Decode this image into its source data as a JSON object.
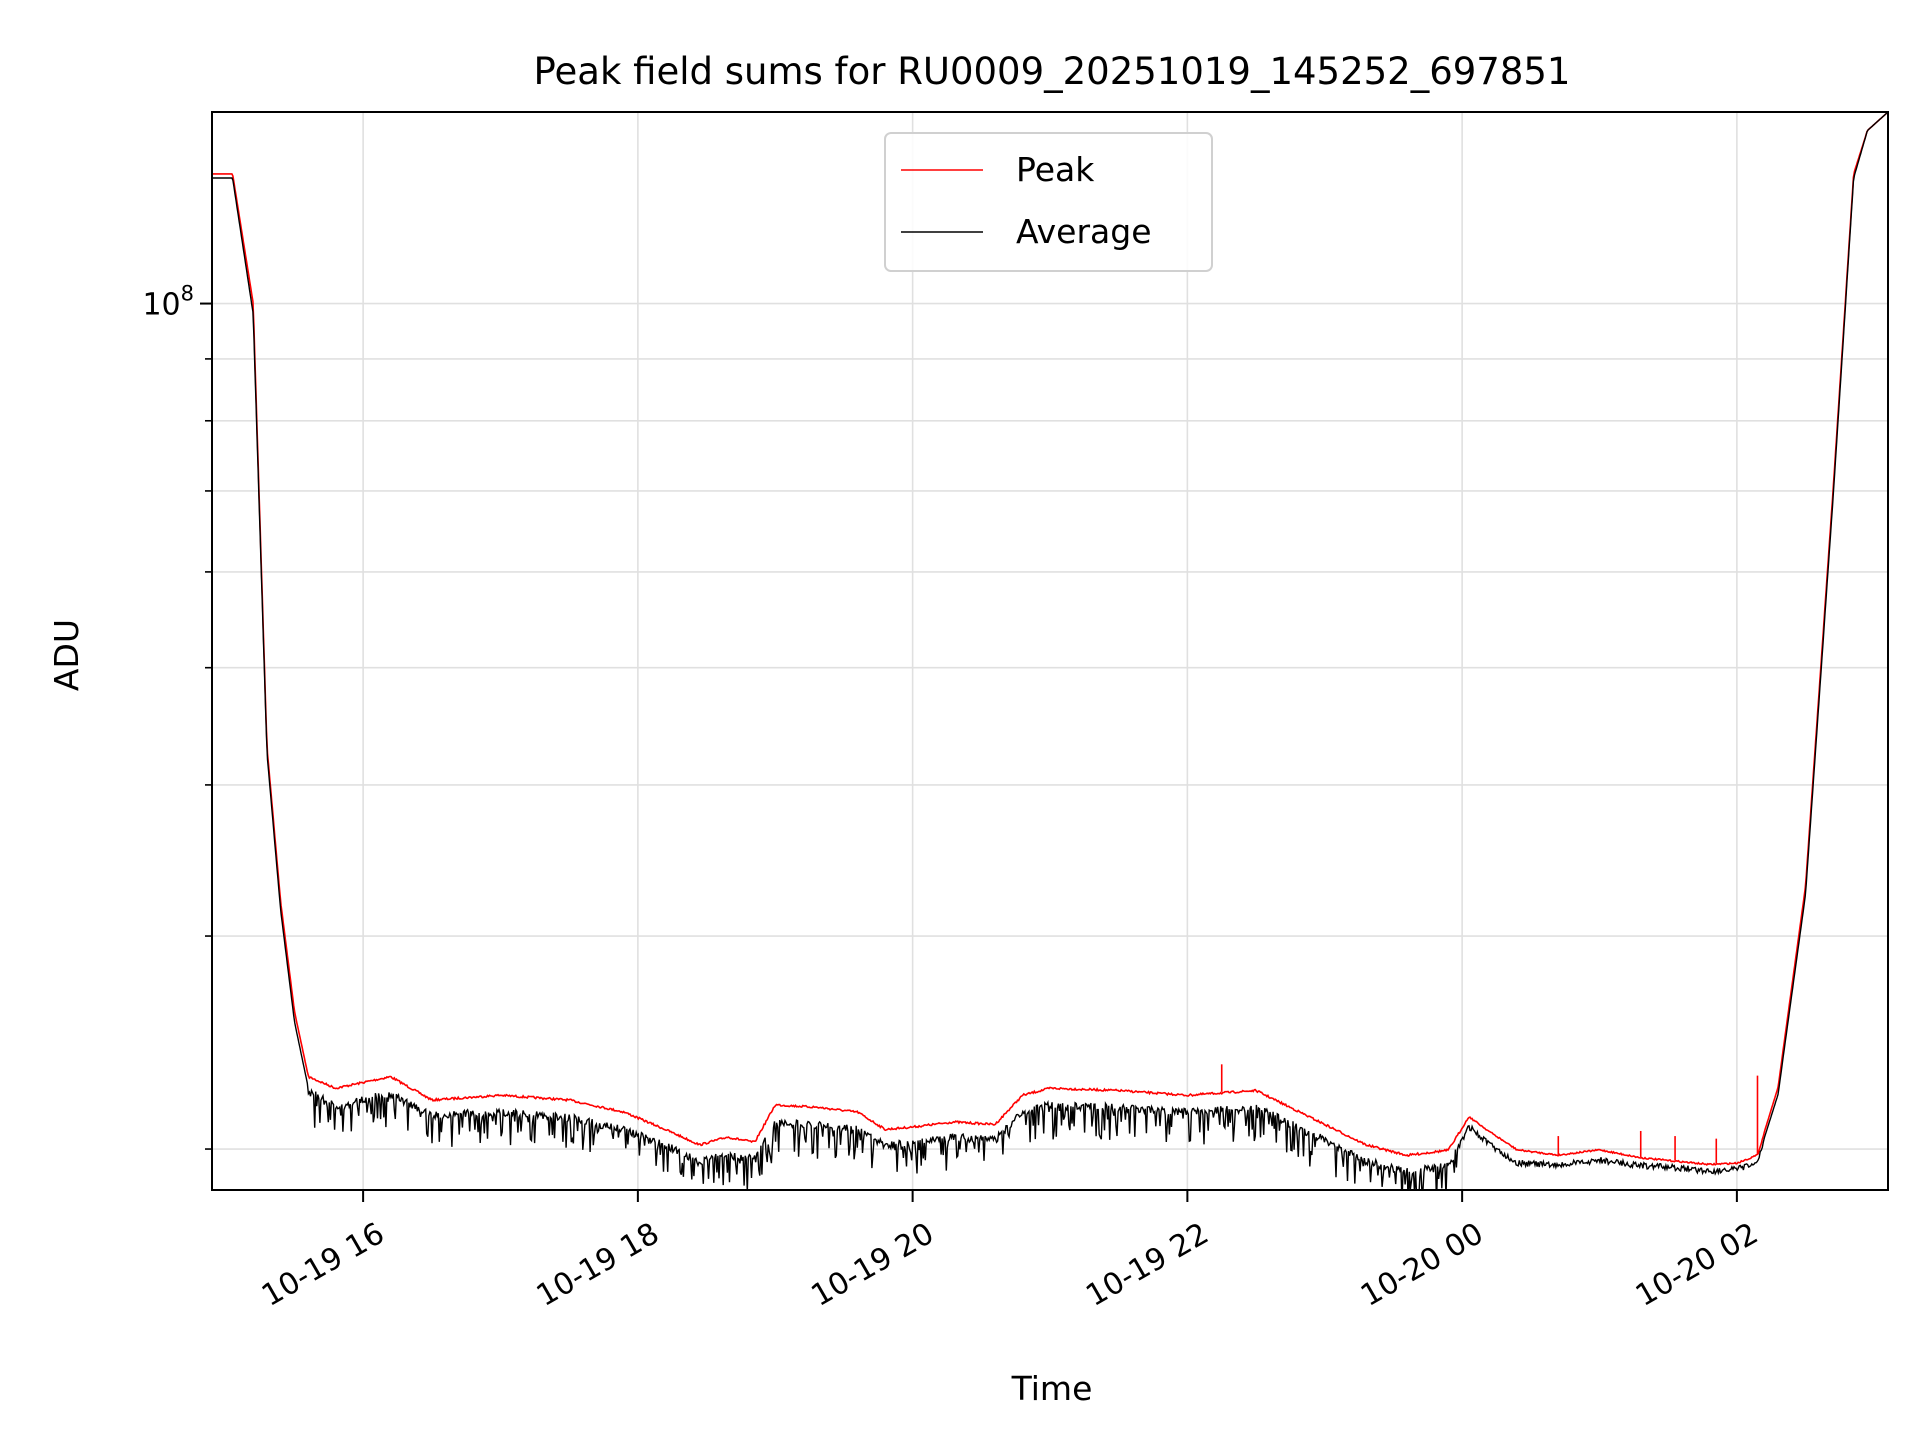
{
  "chart_data": {
    "type": "line",
    "title": "Peak field sums for RU0009_20251019_145252_697851",
    "xlabel": "Time",
    "ylabel": "ADU",
    "yscale": "log",
    "ylim": [
      18500000,
      144000000
    ],
    "xlim_hours": [
      14.9,
      27.1
    ],
    "grid": true,
    "legend_position": "top-center",
    "x_ticks": [
      {
        "hour": 16,
        "label": "10-19 16"
      },
      {
        "hour": 18,
        "label": "10-19 18"
      },
      {
        "hour": 20,
        "label": "10-19 20"
      },
      {
        "hour": 22,
        "label": "10-19 22"
      },
      {
        "hour": 24,
        "label": "10-20 00"
      },
      {
        "hour": 26,
        "label": "10-20 02"
      }
    ],
    "y_major_ticks": [
      {
        "value": 100000000,
        "base": "10",
        "exp": "8"
      }
    ],
    "y_minor_ticks": [
      20000000,
      30000000,
      40000000,
      50000000,
      60000000,
      70000000,
      80000000,
      90000000
    ],
    "x_hours": [
      14.9,
      15.05,
      15.2,
      15.3,
      15.4,
      15.5,
      15.6,
      15.8,
      16.2,
      16.5,
      17,
      17.5,
      17.9,
      18.2,
      18.45,
      18.65,
      18.85,
      19,
      19.3,
      19.6,
      19.8,
      20,
      20.3,
      20.6,
      20.8,
      21,
      21.5,
      22,
      22.5,
      23,
      23.3,
      23.6,
      23.9,
      24.05,
      24.2,
      24.4,
      24.7,
      25,
      25.3,
      25.6,
      25.8,
      26,
      26.15,
      26.3,
      26.5,
      26.7,
      26.85,
      26.95,
      27.1
    ],
    "series": [
      {
        "name": "Peak",
        "color": "#ff0000",
        "values": [
          128000000,
          128000000,
          100000000,
          43000000,
          32000000,
          26000000,
          23000000,
          22500000,
          23000000,
          22000000,
          22200000,
          22000000,
          21500000,
          20800000,
          20200000,
          20500000,
          20300000,
          21800000,
          21700000,
          21500000,
          20800000,
          20900000,
          21100000,
          21000000,
          22200000,
          22500000,
          22400000,
          22200000,
          22400000,
          21000000,
          20200000,
          19800000,
          20000000,
          21300000,
          20700000,
          20000000,
          19800000,
          20000000,
          19700000,
          19550000,
          19450000,
          19500000,
          19800000,
          22500000,
          33000000,
          70000000,
          128000000,
          139000000,
          144000000
        ],
        "spikes": [
          {
            "hour": 22.25,
            "value": 23500000
          },
          {
            "hour": 24.7,
            "value": 20500000
          },
          {
            "hour": 25.3,
            "value": 20700000
          },
          {
            "hour": 25.55,
            "value": 20500000
          },
          {
            "hour": 25.85,
            "value": 20400000
          },
          {
            "hour": 26.15,
            "value": 23000000
          }
        ]
      },
      {
        "name": "Average",
        "color": "#000000",
        "values": [
          127000000,
          127000000,
          98000000,
          42500000,
          31500000,
          25500000,
          22500000,
          21900000,
          22400000,
          21500000,
          21600000,
          21400000,
          20900000,
          20300000,
          19700000,
          19900000,
          19800000,
          21200000,
          21100000,
          20900000,
          20300000,
          20400000,
          20600000,
          20500000,
          21600000,
          21900000,
          21800000,
          21600000,
          21800000,
          20500000,
          19700000,
          19300000,
          19500000,
          21000000,
          20300000,
          19600000,
          19500000,
          19700000,
          19500000,
          19400000,
          19300000,
          19350000,
          19600000,
          22200000,
          32500000,
          69000000,
          127000000,
          139000000,
          144000000
        ],
        "noise_note": "dense dips below the line between about 15.6h and 24.0h"
      }
    ]
  }
}
